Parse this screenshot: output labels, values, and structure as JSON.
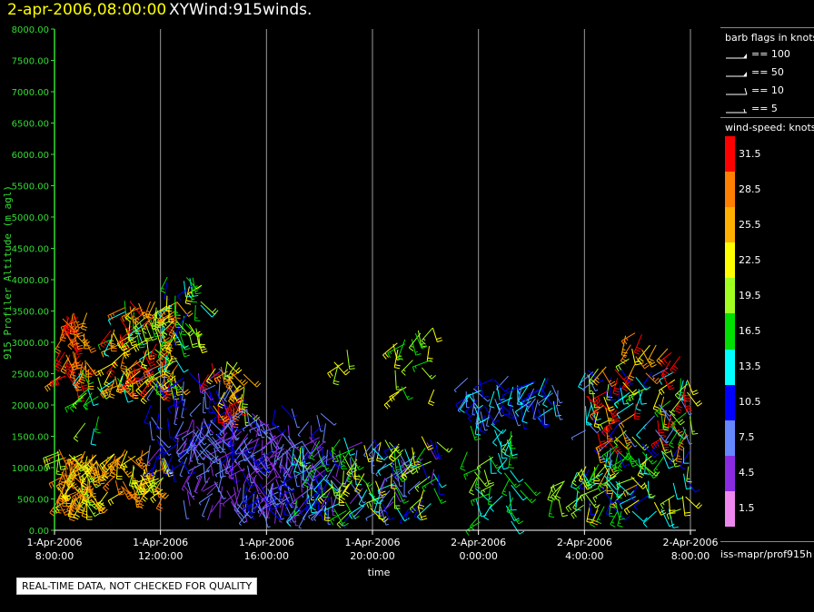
{
  "header": {
    "date_time": "2-apr-2006,08:00:00",
    "title": "XYWind:915winds."
  },
  "colors": {
    "accent_yellow": "#ffff00",
    "axis_green": "#33dd33",
    "grid": "#9a9a9a"
  },
  "chart_data": {
    "type": "scatter",
    "subtype": "wind-barb time-height",
    "ylabel": "915 Profiler Altitude (m agl)",
    "xlabel": "time",
    "ylim": [
      0,
      8000
    ],
    "yticks": [
      "0.00",
      "500.00",
      "1000.00",
      "1500.00",
      "2000.00",
      "2500.00",
      "3000.00",
      "3500.00",
      "4000.00",
      "4500.00",
      "5000.00",
      "5500.00",
      "6000.00",
      "6500.00",
      "7000.00",
      "7500.00",
      "8000.00"
    ],
    "xlim_hours": [
      0,
      24
    ],
    "xticks": [
      {
        "hour": 0,
        "line1": "1-Apr-2006",
        "line2": "8:00:00"
      },
      {
        "hour": 4,
        "line1": "1-Apr-2006",
        "line2": "12:00:00"
      },
      {
        "hour": 8,
        "line1": "1-Apr-2006",
        "line2": "16:00:00"
      },
      {
        "hour": 12,
        "line1": "1-Apr-2006",
        "line2": "20:00:00"
      },
      {
        "hour": 16,
        "line1": "2-Apr-2006",
        "line2": "0:00:00"
      },
      {
        "hour": 20,
        "line1": "2-Apr-2006",
        "line2": "4:00:00"
      },
      {
        "hour": 24,
        "line1": "2-Apr-2006",
        "line2": "8:00:00"
      }
    ],
    "grid": "vertical lines at x ticks",
    "clusters": [
      {
        "t0": 0.1,
        "t1": 1.3,
        "h0": 2300,
        "h1": 3500,
        "spd0": 25,
        "spd1": 33,
        "n": 45
      },
      {
        "t0": 0.1,
        "t1": 1.6,
        "h0": 400,
        "h1": 1300,
        "spd0": 19,
        "spd1": 30,
        "n": 90
      },
      {
        "t0": 1.0,
        "t1": 1.7,
        "h0": 1600,
        "h1": 2600,
        "spd0": 12,
        "spd1": 20,
        "n": 14
      },
      {
        "t0": 2.1,
        "t1": 4.7,
        "h0": 2300,
        "h1": 3700,
        "spd0": 13,
        "spd1": 33,
        "n": 130
      },
      {
        "t0": 2.0,
        "t1": 4.2,
        "h0": 600,
        "h1": 1300,
        "spd0": 20,
        "spd1": 30,
        "n": 55
      },
      {
        "t0": 4.2,
        "t1": 5.6,
        "h0": 3000,
        "h1": 4100,
        "spd0": 10,
        "spd1": 24,
        "n": 35
      },
      {
        "t0": 3.6,
        "t1": 6.8,
        "h0": 1000,
        "h1": 2600,
        "spd0": 5,
        "spd1": 12,
        "n": 85
      },
      {
        "t0": 5.8,
        "t1": 7.2,
        "h0": 1900,
        "h1": 2700,
        "spd0": 19,
        "spd1": 33,
        "n": 32
      },
      {
        "t0": 4.8,
        "t1": 9.0,
        "h0": 300,
        "h1": 1800,
        "spd0": 3,
        "spd1": 9,
        "n": 140
      },
      {
        "t0": 6.5,
        "t1": 10.4,
        "h0": 300,
        "h1": 2000,
        "spd0": 3,
        "spd1": 12,
        "n": 120
      },
      {
        "t0": 9.0,
        "t1": 14.5,
        "h0": 300,
        "h1": 1500,
        "spd0": 4,
        "spd1": 23,
        "n": 170
      },
      {
        "t0": 10.5,
        "t1": 11.3,
        "h0": 2600,
        "h1": 2900,
        "spd0": 20,
        "spd1": 24,
        "n": 4
      },
      {
        "t0": 12.7,
        "t1": 14.5,
        "h0": 2200,
        "h1": 3300,
        "spd0": 16,
        "spd1": 24,
        "n": 20
      },
      {
        "t0": 15.5,
        "t1": 17.3,
        "h0": 100,
        "h1": 1700,
        "spd0": 13,
        "spd1": 19,
        "n": 40
      },
      {
        "t0": 15.5,
        "t1": 19.0,
        "h0": 1800,
        "h1": 2500,
        "spd0": 6,
        "spd1": 15,
        "n": 65
      },
      {
        "t0": 17.5,
        "t1": 19.5,
        "h0": 400,
        "h1": 800,
        "spd0": 15,
        "spd1": 24,
        "n": 8
      },
      {
        "t0": 19.7,
        "t1": 24.0,
        "h0": 300,
        "h1": 1300,
        "spd0": 10,
        "spd1": 25,
        "n": 90
      },
      {
        "t0": 20.0,
        "t1": 24.0,
        "h0": 1300,
        "h1": 2600,
        "spd0": 6,
        "spd1": 33,
        "n": 110
      },
      {
        "t0": 20.8,
        "t1": 23.8,
        "h0": 2600,
        "h1": 3300,
        "spd0": 18,
        "spd1": 32,
        "n": 16
      }
    ]
  },
  "legend": {
    "barb_title": "barb flags in knots",
    "barbs": [
      {
        "label": "== 100",
        "kind": "pennant"
      },
      {
        "label": "== 50",
        "kind": "pennant"
      },
      {
        "label": "== 10",
        "kind": "full"
      },
      {
        "label": "== 5",
        "kind": "half"
      }
    ],
    "speed_title": "wind-speed: knots",
    "colorbar": [
      {
        "label": "31.5",
        "color": "#ff0000"
      },
      {
        "label": "28.5",
        "color": "#ff8000"
      },
      {
        "label": "25.5",
        "color": "#ffb000"
      },
      {
        "label": "22.5",
        "color": "#ffff00"
      },
      {
        "label": "19.5",
        "color": "#a0ff20"
      },
      {
        "label": "16.5",
        "color": "#00e000"
      },
      {
        "label": "13.5",
        "color": "#00ffff"
      },
      {
        "label": "10.5",
        "color": "#0000ff"
      },
      {
        "label": "7.5",
        "color": "#6688ff"
      },
      {
        "label": "4.5",
        "color": "#8a2be2"
      },
      {
        "label": "1.5",
        "color": "#ee88ee"
      }
    ],
    "footer": "iss-mapr/prof915h"
  },
  "notice": "REAL-TIME DATA, NOT CHECKED FOR QUALITY"
}
